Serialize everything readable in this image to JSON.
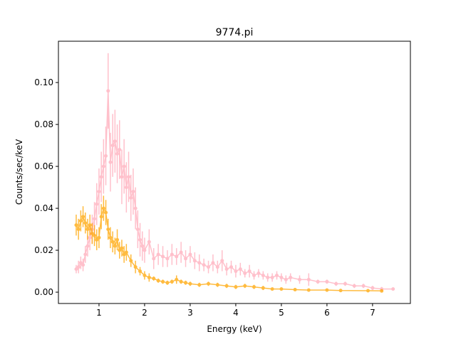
{
  "chart_data": {
    "type": "scatter",
    "title": "9774.pi",
    "xlabel": "Energy (keV)",
    "ylabel": "Counts/sec/keV",
    "xlim": [
      0.11,
      7.83
    ],
    "ylim": [
      -0.0054,
      0.1197
    ],
    "xticks": [
      1,
      2,
      3,
      4,
      5,
      6,
      7
    ],
    "yticks": [
      0.0,
      0.02,
      0.04,
      0.06,
      0.08,
      0.1
    ],
    "ytick_labels": [
      "0.00",
      "0.02",
      "0.04",
      "0.06",
      "0.08",
      "0.10"
    ],
    "grid": false,
    "series": [
      {
        "color": "#ffc0cb",
        "points": [
          [
            0.5,
            0.011,
            0.002
          ],
          [
            0.55,
            0.012,
            0.003
          ],
          [
            0.6,
            0.014,
            0.003
          ],
          [
            0.65,
            0.013,
            0.003
          ],
          [
            0.7,
            0.018,
            0.004
          ],
          [
            0.75,
            0.022,
            0.005
          ],
          [
            0.8,
            0.026,
            0.006
          ],
          [
            0.85,
            0.03,
            0.007
          ],
          [
            0.9,
            0.035,
            0.008
          ],
          [
            0.95,
            0.042,
            0.01
          ],
          [
            1.0,
            0.048,
            0.011
          ],
          [
            1.05,
            0.055,
            0.012
          ],
          [
            1.1,
            0.06,
            0.013
          ],
          [
            1.15,
            0.065,
            0.014
          ],
          [
            1.2,
            0.096,
            0.018
          ],
          [
            1.25,
            0.062,
            0.014
          ],
          [
            1.3,
            0.07,
            0.015
          ],
          [
            1.35,
            0.072,
            0.015
          ],
          [
            1.4,
            0.066,
            0.014
          ],
          [
            1.45,
            0.068,
            0.014
          ],
          [
            1.5,
            0.055,
            0.013
          ],
          [
            1.55,
            0.06,
            0.013
          ],
          [
            1.6,
            0.05,
            0.012
          ],
          [
            1.65,
            0.055,
            0.012
          ],
          [
            1.7,
            0.045,
            0.011
          ],
          [
            1.75,
            0.048,
            0.011
          ],
          [
            1.8,
            0.04,
            0.01
          ],
          [
            1.85,
            0.03,
            0.009
          ],
          [
            1.9,
            0.025,
            0.008
          ],
          [
            1.95,
            0.022,
            0.007
          ],
          [
            2.0,
            0.02,
            0.006
          ],
          [
            2.1,
            0.024,
            0.006
          ],
          [
            2.2,
            0.016,
            0.005
          ],
          [
            2.3,
            0.018,
            0.005
          ],
          [
            2.4,
            0.017,
            0.005
          ],
          [
            2.5,
            0.016,
            0.004
          ],
          [
            2.6,
            0.018,
            0.005
          ],
          [
            2.7,
            0.017,
            0.004
          ],
          [
            2.8,
            0.019,
            0.005
          ],
          [
            2.9,
            0.016,
            0.004
          ],
          [
            3.0,
            0.018,
            0.004
          ],
          [
            3.1,
            0.015,
            0.004
          ],
          [
            3.2,
            0.014,
            0.004
          ],
          [
            3.3,
            0.013,
            0.003
          ],
          [
            3.4,
            0.012,
            0.003
          ],
          [
            3.5,
            0.014,
            0.004
          ],
          [
            3.6,
            0.012,
            0.003
          ],
          [
            3.7,
            0.015,
            0.005
          ],
          [
            3.8,
            0.011,
            0.003
          ],
          [
            3.9,
            0.012,
            0.003
          ],
          [
            4.0,
            0.01,
            0.003
          ],
          [
            4.1,
            0.011,
            0.003
          ],
          [
            4.2,
            0.009,
            0.002
          ],
          [
            4.3,
            0.01,
            0.003
          ],
          [
            4.4,
            0.008,
            0.002
          ],
          [
            4.5,
            0.009,
            0.002
          ],
          [
            4.6,
            0.008,
            0.002
          ],
          [
            4.7,
            0.007,
            0.002
          ],
          [
            4.8,
            0.007,
            0.002
          ],
          [
            4.9,
            0.008,
            0.002
          ],
          [
            5.0,
            0.007,
            0.002
          ],
          [
            5.1,
            0.006,
            0.002
          ],
          [
            5.2,
            0.007,
            0.002
          ],
          [
            5.4,
            0.006,
            0.002
          ],
          [
            5.6,
            0.006,
            0.003
          ],
          [
            5.8,
            0.005,
            0.001
          ],
          [
            6.0,
            0.005,
            0.001
          ],
          [
            6.2,
            0.004,
            0.001
          ],
          [
            6.4,
            0.004,
            0.001
          ],
          [
            6.6,
            0.003,
            0.001
          ],
          [
            6.8,
            0.003,
            0.001
          ],
          [
            7.0,
            0.002,
            0.001
          ],
          [
            7.2,
            0.0015,
            0.001
          ],
          [
            7.45,
            0.0015,
            0.0005
          ]
        ]
      },
      {
        "color": "#ffa500",
        "points": [
          [
            0.5,
            0.032,
            0.005
          ],
          [
            0.55,
            0.03,
            0.005
          ],
          [
            0.6,
            0.034,
            0.005
          ],
          [
            0.65,
            0.036,
            0.005
          ],
          [
            0.7,
            0.033,
            0.005
          ],
          [
            0.75,
            0.03,
            0.005
          ],
          [
            0.8,
            0.032,
            0.005
          ],
          [
            0.85,
            0.028,
            0.005
          ],
          [
            0.9,
            0.027,
            0.005
          ],
          [
            0.95,
            0.025,
            0.005
          ],
          [
            1.0,
            0.026,
            0.005
          ],
          [
            1.05,
            0.036,
            0.006
          ],
          [
            1.1,
            0.04,
            0.006
          ],
          [
            1.15,
            0.038,
            0.006
          ],
          [
            1.2,
            0.03,
            0.005
          ],
          [
            1.25,
            0.026,
            0.005
          ],
          [
            1.3,
            0.024,
            0.005
          ],
          [
            1.35,
            0.022,
            0.004
          ],
          [
            1.4,
            0.025,
            0.005
          ],
          [
            1.45,
            0.02,
            0.004
          ],
          [
            1.5,
            0.021,
            0.004
          ],
          [
            1.55,
            0.018,
            0.004
          ],
          [
            1.6,
            0.019,
            0.004
          ],
          [
            1.7,
            0.015,
            0.003
          ],
          [
            1.8,
            0.012,
            0.003
          ],
          [
            1.9,
            0.01,
            0.002
          ],
          [
            2.0,
            0.008,
            0.002
          ],
          [
            2.1,
            0.007,
            0.002
          ],
          [
            2.2,
            0.0065,
            0.001
          ],
          [
            2.3,
            0.0055,
            0.001
          ],
          [
            2.4,
            0.005,
            0.001
          ],
          [
            2.5,
            0.0045,
            0.001
          ],
          [
            2.6,
            0.005,
            0.001
          ],
          [
            2.7,
            0.006,
            0.002
          ],
          [
            2.8,
            0.005,
            0.001
          ],
          [
            2.9,
            0.0045,
            0.001
          ],
          [
            3.0,
            0.004,
            0.001
          ],
          [
            3.2,
            0.0035,
            0.001
          ],
          [
            3.4,
            0.004,
            0.001
          ],
          [
            3.6,
            0.0035,
            0.001
          ],
          [
            3.8,
            0.003,
            0.001
          ],
          [
            4.0,
            0.0025,
            0.001
          ],
          [
            4.2,
            0.003,
            0.001
          ],
          [
            4.4,
            0.0025,
            0.001
          ],
          [
            4.6,
            0.002,
            0.001
          ],
          [
            4.8,
            0.0015,
            0.0005
          ],
          [
            5.0,
            0.0015,
            0.0005
          ],
          [
            5.3,
            0.0012,
            0.0005
          ],
          [
            5.6,
            0.001,
            0.0005
          ],
          [
            6.0,
            0.001,
            0.0005
          ],
          [
            6.3,
            0.0008,
            0.0003
          ],
          [
            6.9,
            0.0007,
            0.0003
          ],
          [
            7.2,
            0.0006,
            0.0003
          ]
        ]
      }
    ]
  }
}
